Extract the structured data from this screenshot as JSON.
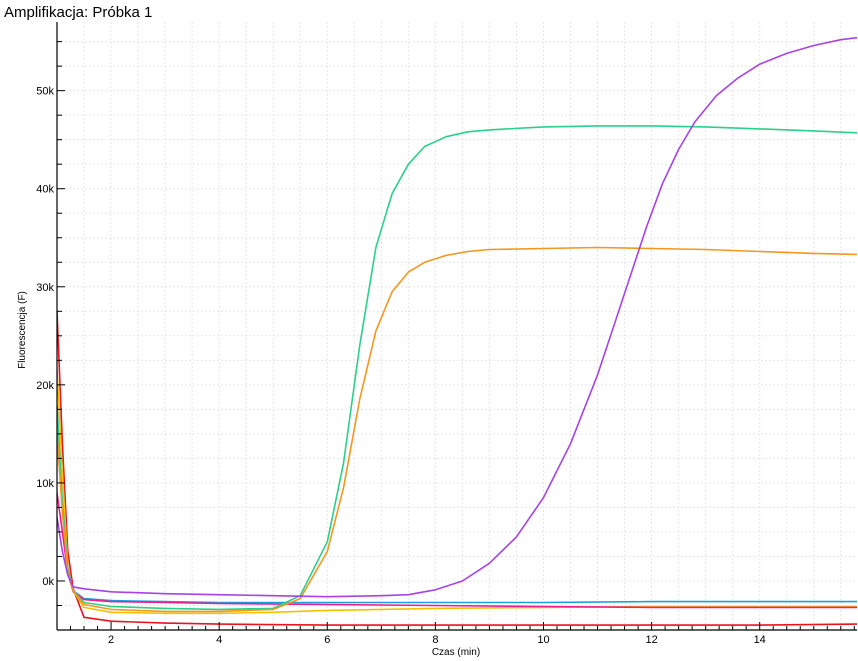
{
  "chart_data": {
    "type": "line",
    "title": "Amplifikacja: Próbka 1",
    "xlabel": "Czas (min)",
    "ylabel": "Fluorescencja (F)",
    "xlim": [
      1.0,
      15.8
    ],
    "ylim": [
      -5000,
      57000
    ],
    "x_ticks": [
      2,
      4,
      6,
      8,
      10,
      12,
      14
    ],
    "x_tick_labels": [
      "2",
      "4",
      "6",
      "8",
      "10",
      "12",
      "14"
    ],
    "y_ticks": [
      0,
      10000,
      20000,
      30000,
      40000,
      50000
    ],
    "y_tick_labels": [
      "0k",
      "10k",
      "20k",
      "30k",
      "40k",
      "50k"
    ],
    "grid": true,
    "legend": "none",
    "series": [
      {
        "color": "#e8141e",
        "x": [
          1.0,
          1.1,
          1.2,
          1.3,
          1.5,
          2.0,
          3.0,
          4.0,
          6.0,
          8.0,
          10.0,
          12.0,
          14.0,
          15.8
        ],
        "y": [
          27500,
          14000,
          3000,
          -800,
          -3700,
          -4100,
          -4300,
          -4400,
          -4500,
          -4500,
          -4500,
          -4500,
          -4500,
          -4400
        ]
      },
      {
        "color": "#f2c200",
        "x": [
          1.0,
          1.1,
          1.2,
          1.3,
          1.5,
          2.0,
          3.0,
          4.0,
          5.0,
          6.0,
          8.0,
          10.0,
          12.0,
          14.0,
          15.8
        ],
        "y": [
          21500,
          11000,
          1500,
          -1000,
          -2700,
          -3200,
          -3300,
          -3300,
          -3200,
          -3000,
          -2800,
          -2700,
          -2600,
          -2600,
          -2600
        ]
      },
      {
        "color": "#1a9fe0",
        "x": [
          1.0,
          1.1,
          1.2,
          1.3,
          1.5,
          2.0,
          3.0,
          4.0,
          6.0,
          8.0,
          10.0,
          12.0,
          14.0,
          15.8
        ],
        "y": [
          14500,
          8000,
          1200,
          -1000,
          -1800,
          -2000,
          -2100,
          -2200,
          -2200,
          -2200,
          -2200,
          -2100,
          -2100,
          -2100
        ]
      },
      {
        "color": "#ee1c8c",
        "x": [
          1.0,
          1.1,
          1.2,
          1.3,
          1.5,
          2.0,
          3.0,
          4.0,
          6.0,
          8.0,
          10.0,
          12.0,
          14.0,
          15.8
        ],
        "y": [
          9000,
          5000,
          800,
          -1100,
          -1900,
          -2100,
          -2200,
          -2300,
          -2400,
          -2500,
          -2600,
          -2700,
          -2700,
          -2700
        ]
      },
      {
        "color": "#2bd08a",
        "x": [
          1.0,
          1.1,
          1.2,
          1.3,
          1.5,
          2.0,
          3.0,
          4.0,
          5.0,
          5.5,
          6.0,
          6.3,
          6.6,
          6.9,
          7.2,
          7.5,
          7.8,
          8.2,
          8.6,
          9.0,
          10.0,
          11.0,
          12.0,
          13.0,
          14.0,
          15.0,
          15.8
        ],
        "y": [
          18000,
          8000,
          1000,
          -1000,
          -2200,
          -2600,
          -2800,
          -2900,
          -2800,
          -1500,
          4000,
          12000,
          24000,
          34000,
          39500,
          42500,
          44300,
          45300,
          45800,
          46000,
          46300,
          46400,
          46400,
          46300,
          46100,
          45900,
          45700
        ]
      },
      {
        "color": "#f5961e",
        "x": [
          1.0,
          1.1,
          1.2,
          1.3,
          1.5,
          2.0,
          3.0,
          4.0,
          5.0,
          5.5,
          6.0,
          6.3,
          6.6,
          6.9,
          7.2,
          7.5,
          7.8,
          8.2,
          8.6,
          9.0,
          10.0,
          11.0,
          12.0,
          13.0,
          14.0,
          15.0,
          15.8
        ],
        "y": [
          15000,
          7000,
          800,
          -1000,
          -2400,
          -2900,
          -3100,
          -3100,
          -2900,
          -1800,
          3000,
          9500,
          18500,
          25500,
          29500,
          31500,
          32500,
          33200,
          33600,
          33800,
          33900,
          34000,
          33900,
          33800,
          33600,
          33400,
          33300
        ]
      },
      {
        "color": "#a742e6",
        "x": [
          1.0,
          1.1,
          1.2,
          1.3,
          1.5,
          2.0,
          3.0,
          4.0,
          5.0,
          6.0,
          7.0,
          7.5,
          8.0,
          8.5,
          9.0,
          9.5,
          10.0,
          10.5,
          11.0,
          11.3,
          11.6,
          11.9,
          12.2,
          12.5,
          12.8,
          13.2,
          13.6,
          14.0,
          14.5,
          15.0,
          15.5,
          15.8
        ],
        "y": [
          6500,
          3000,
          600,
          -600,
          -800,
          -1100,
          -1300,
          -1400,
          -1500,
          -1600,
          -1500,
          -1400,
          -900,
          0,
          1800,
          4500,
          8500,
          14000,
          21000,
          26000,
          31000,
          36000,
          40500,
          44000,
          46800,
          49500,
          51300,
          52700,
          53800,
          54600,
          55200,
          55400
        ]
      }
    ]
  }
}
